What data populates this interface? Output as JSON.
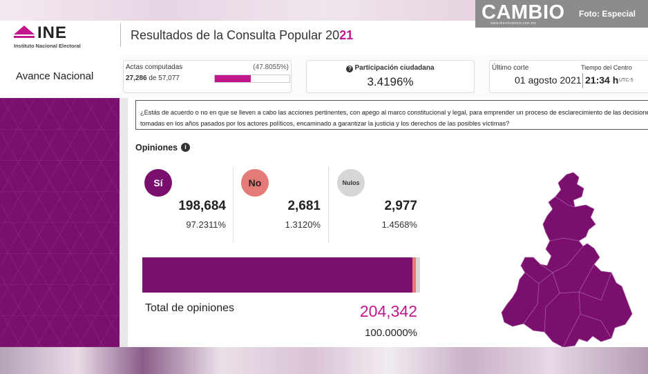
{
  "watermark": {
    "brand": "CAMBIO",
    "site": "www.diariocambio.com.mx",
    "credit": "Foto: Especial"
  },
  "header": {
    "org": "INE",
    "org_full": "Instituto Nacional Electoral",
    "title_pre": "Resultados de la Consulta Popular 20",
    "title_accent": "21"
  },
  "scope_label": "Avance Nacional",
  "actas": {
    "title": "Actas computadas",
    "percent": "(47.8055%)",
    "count": "27,286",
    "connector": "de",
    "total": "57,077",
    "progress": 0.478
  },
  "participacion": {
    "title": "Participación ciudadana",
    "value": "3.4196%"
  },
  "corte": {
    "title": "Último corte",
    "date": "01 agosto 2021",
    "tiempo_title": "Tiempo del Centro",
    "time": "21:34 h",
    "utc": "UTC-5"
  },
  "question": {
    "line1": "¿Estás de acuerdo o no en que se lleven a cabo las acciones pertinentes, con apego al marco constitucional y legal, para emprender un proceso de esclarecimiento de las decisiones políticas",
    "line2": "tomadas en los años pasados por los actores políticos, encaminado a garantizar la justicia y los derechos de las posibles víctimas?"
  },
  "opiniones_label": "Opiniones",
  "options": [
    {
      "label": "Sí",
      "votes": "198,684",
      "percent": "97.2311%",
      "color": "#7a0f6e"
    },
    {
      "label": "No",
      "votes": "2,681",
      "percent": "1.3120%",
      "color": "#e57b77"
    },
    {
      "label": "Nulos",
      "votes": "2,977",
      "percent": "1.4568%",
      "color": "#d6d6d6"
    }
  ],
  "total": {
    "label": "Total de opiniones",
    "value": "204,342",
    "percent": "100.0000%"
  },
  "colors": {
    "accent": "#c3168c",
    "purple": "#7a0f6e"
  }
}
